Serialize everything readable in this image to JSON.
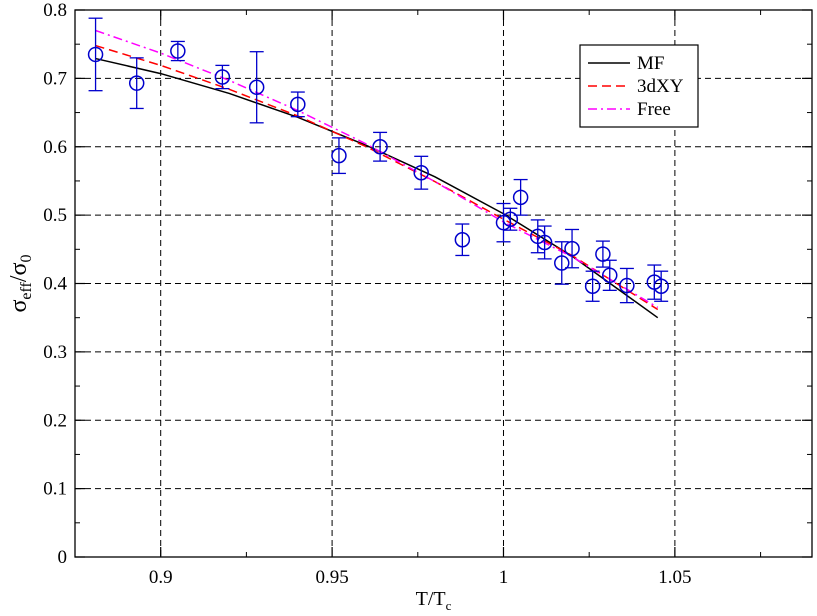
{
  "chart_data": {
    "type": "scatter",
    "xlim": [
      0.875,
      1.09
    ],
    "ylim": [
      0,
      0.8
    ],
    "grid": true,
    "legend_position": "top-right",
    "x_ticks": [
      {
        "value": 0.9,
        "label": "0.9"
      },
      {
        "value": 0.95,
        "label": "0.95"
      },
      {
        "value": 1.0,
        "label": "1"
      },
      {
        "value": 1.05,
        "label": "1.05"
      }
    ],
    "y_ticks": [
      {
        "value": 0,
        "label": "0"
      },
      {
        "value": 0.1,
        "label": "0.1"
      },
      {
        "value": 0.2,
        "label": "0.2"
      },
      {
        "value": 0.3,
        "label": "0.3"
      },
      {
        "value": 0.4,
        "label": "0.4"
      },
      {
        "value": 0.5,
        "label": "0.5"
      },
      {
        "value": 0.6,
        "label": "0.6"
      },
      {
        "value": 0.7,
        "label": "0.7"
      },
      {
        "value": 0.8,
        "label": "0.8"
      }
    ],
    "xlabel": {
      "main": "T/T",
      "sub": "c"
    },
    "ylabel": {
      "main1": "σ",
      "sub1": "eff",
      "main2": "/σ",
      "sub2": "0"
    },
    "data_points": {
      "color": "#0000cc",
      "points": [
        {
          "x": 0.881,
          "y": 0.735,
          "err": 0.053
        },
        {
          "x": 0.893,
          "y": 0.693,
          "err": 0.037
        },
        {
          "x": 0.905,
          "y": 0.74,
          "err": 0.014
        },
        {
          "x": 0.918,
          "y": 0.702,
          "err": 0.017
        },
        {
          "x": 0.928,
          "y": 0.687,
          "err": 0.052
        },
        {
          "x": 0.94,
          "y": 0.662,
          "err": 0.018
        },
        {
          "x": 0.952,
          "y": 0.587,
          "err": 0.026
        },
        {
          "x": 0.964,
          "y": 0.6,
          "err": 0.021
        },
        {
          "x": 0.976,
          "y": 0.562,
          "err": 0.024
        },
        {
          "x": 0.988,
          "y": 0.464,
          "err": 0.023
        },
        {
          "x": 1.0,
          "y": 0.489,
          "err": 0.028
        },
        {
          "x": 1.002,
          "y": 0.494,
          "err": 0.016
        },
        {
          "x": 1.005,
          "y": 0.526,
          "err": 0.026
        },
        {
          "x": 1.01,
          "y": 0.469,
          "err": 0.024
        },
        {
          "x": 1.012,
          "y": 0.46,
          "err": 0.024
        },
        {
          "x": 1.017,
          "y": 0.43,
          "err": 0.031
        },
        {
          "x": 1.02,
          "y": 0.451,
          "err": 0.028
        },
        {
          "x": 1.026,
          "y": 0.396,
          "err": 0.022
        },
        {
          "x": 1.029,
          "y": 0.443,
          "err": 0.019
        },
        {
          "x": 1.031,
          "y": 0.412,
          "err": 0.022
        },
        {
          "x": 1.036,
          "y": 0.397,
          "err": 0.025
        },
        {
          "x": 1.044,
          "y": 0.402,
          "err": 0.025
        },
        {
          "x": 1.046,
          "y": 0.396,
          "err": 0.022
        }
      ]
    },
    "series": [
      {
        "name": "MF",
        "color": "#000000",
        "dash": "solid",
        "x": [
          0.881,
          0.9,
          0.92,
          0.94,
          0.96,
          0.98,
          1.0,
          1.02,
          1.045
        ],
        "y": [
          0.729,
          0.707,
          0.678,
          0.643,
          0.602,
          0.556,
          0.502,
          0.44,
          0.35
        ]
      },
      {
        "name": "3dXY",
        "color": "#ff0000",
        "dash": "dashed",
        "x": [
          0.881,
          0.9,
          0.92,
          0.94,
          0.96,
          0.98,
          1.0,
          1.02,
          1.045
        ],
        "y": [
          0.748,
          0.719,
          0.684,
          0.645,
          0.6,
          0.549,
          0.494,
          0.441,
          0.362
        ]
      },
      {
        "name": "Free",
        "color": "#ff00ff",
        "dash": "dashdot",
        "x": [
          0.881,
          0.9,
          0.92,
          0.94,
          0.96,
          0.98,
          1.0,
          1.02,
          1.045
        ],
        "y": [
          0.77,
          0.737,
          0.697,
          0.653,
          0.604,
          0.549,
          0.49,
          0.439,
          0.365
        ]
      }
    ]
  }
}
